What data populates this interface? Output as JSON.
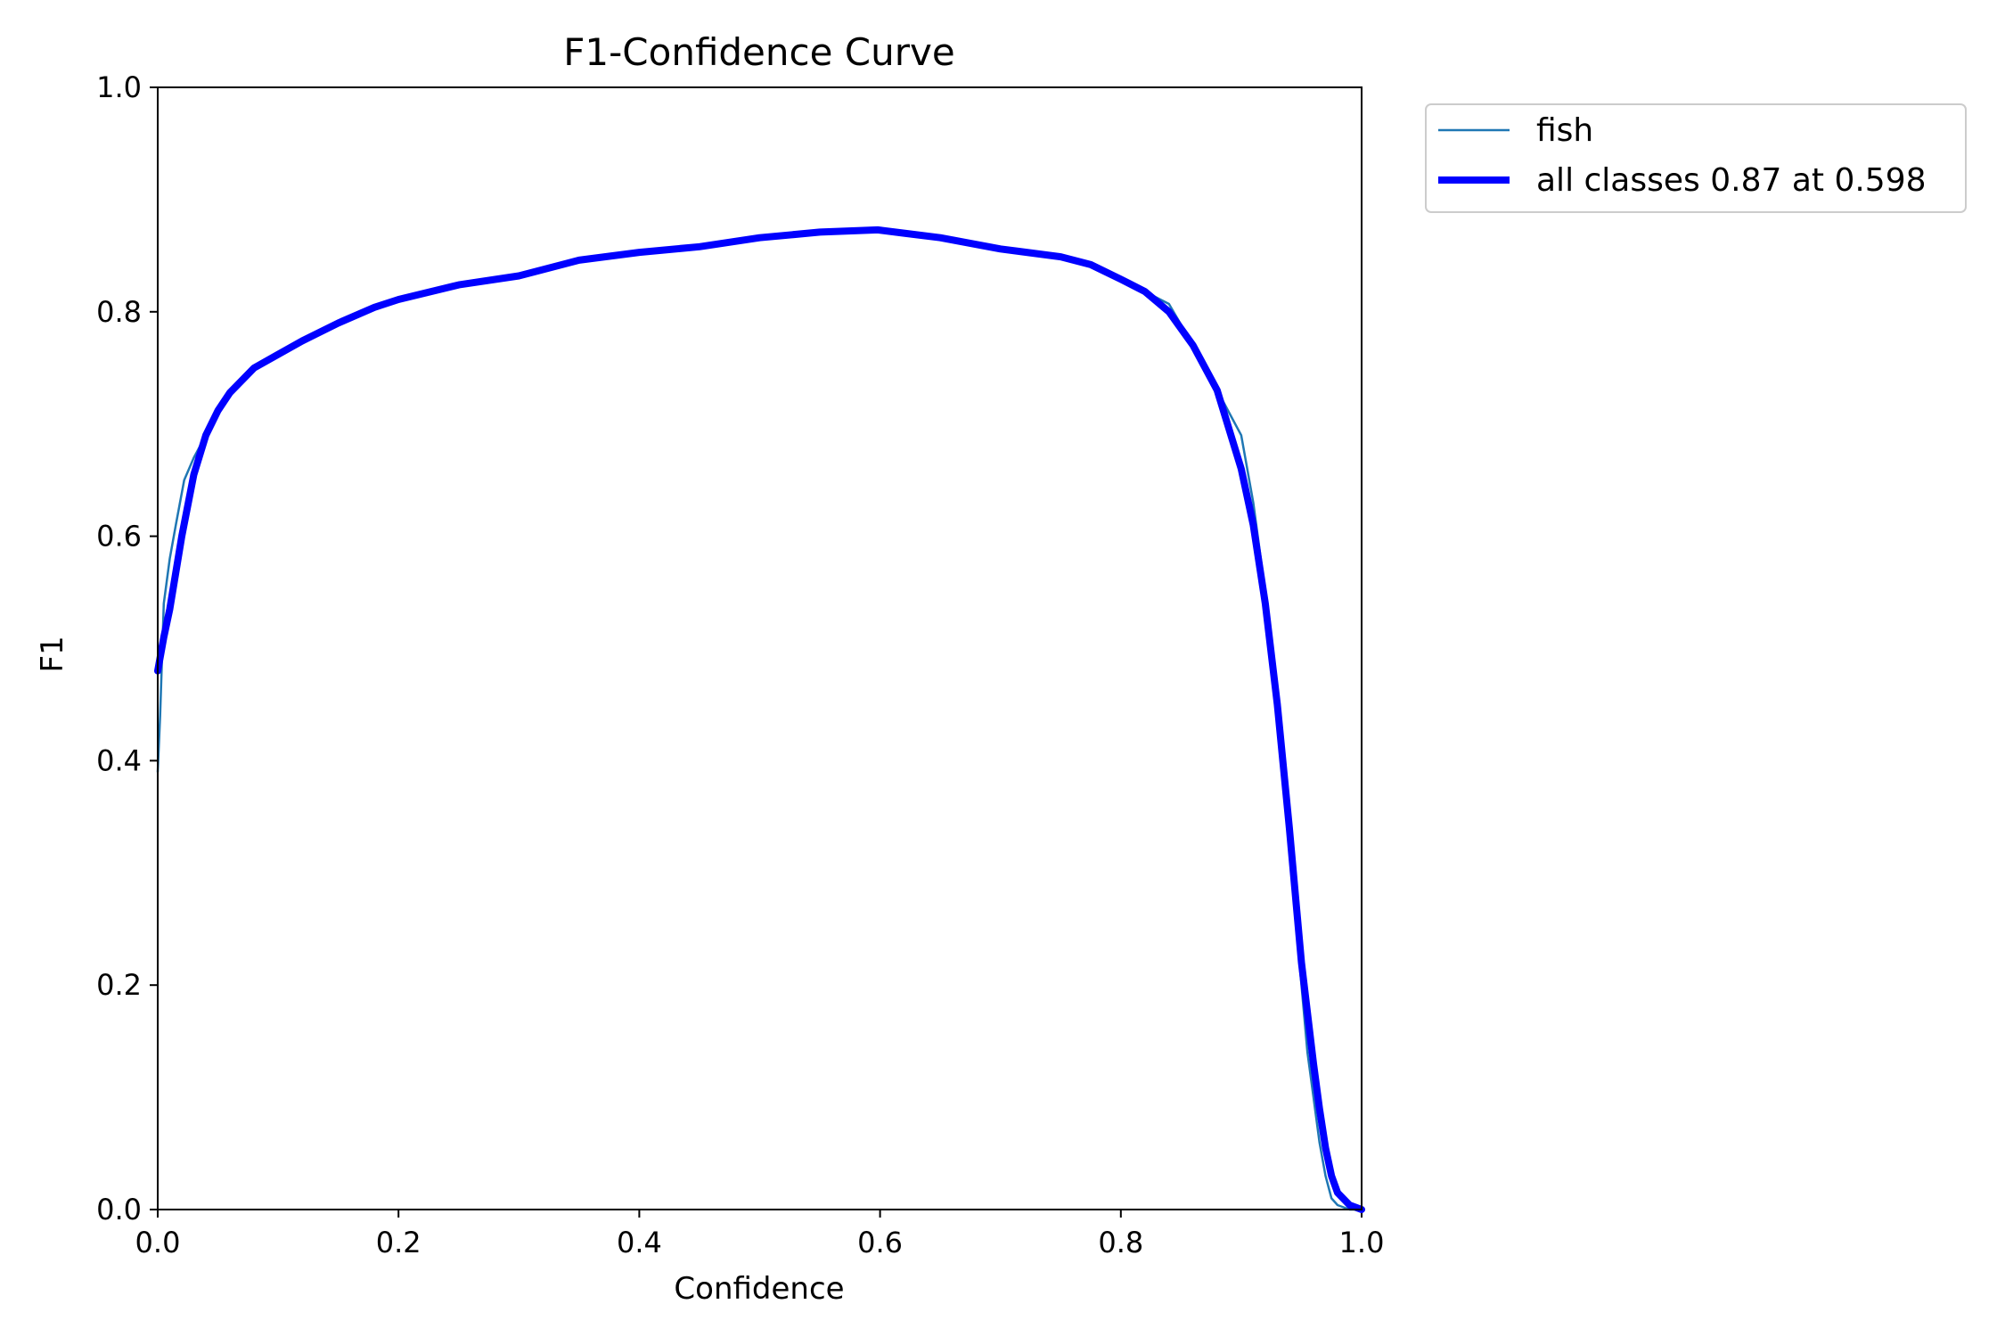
{
  "chart_data": {
    "type": "line",
    "title": "F1-Confidence Curve",
    "xlabel": "Confidence",
    "ylabel": "F1",
    "xlim": [
      0.0,
      1.0
    ],
    "ylim": [
      0.0,
      1.0
    ],
    "x_ticks": [
      "0.0",
      "0.2",
      "0.4",
      "0.6",
      "0.8",
      "1.0"
    ],
    "y_ticks": [
      "0.0",
      "0.2",
      "0.4",
      "0.6",
      "0.8",
      "1.0"
    ],
    "grid": false,
    "legend_position": "outside-top-right",
    "series": [
      {
        "name": "fish",
        "color": "#1f77b4",
        "points": [
          [
            0.0,
            0.39
          ],
          [
            0.002,
            0.44
          ],
          [
            0.005,
            0.54
          ],
          [
            0.01,
            0.58
          ],
          [
            0.015,
            0.61
          ],
          [
            0.022,
            0.65
          ],
          [
            0.03,
            0.67
          ],
          [
            0.04,
            0.69
          ],
          [
            0.05,
            0.71
          ],
          [
            0.06,
            0.73
          ],
          [
            0.08,
            0.75
          ],
          [
            0.1,
            0.763
          ],
          [
            0.12,
            0.775
          ],
          [
            0.15,
            0.79
          ],
          [
            0.18,
            0.805
          ],
          [
            0.2,
            0.811
          ],
          [
            0.25,
            0.825
          ],
          [
            0.3,
            0.833
          ],
          [
            0.35,
            0.847
          ],
          [
            0.4,
            0.853
          ],
          [
            0.45,
            0.859
          ],
          [
            0.5,
            0.866
          ],
          [
            0.55,
            0.871
          ],
          [
            0.6,
            0.873
          ],
          [
            0.65,
            0.866
          ],
          [
            0.7,
            0.856
          ],
          [
            0.75,
            0.849
          ],
          [
            0.775,
            0.843
          ],
          [
            0.8,
            0.829
          ],
          [
            0.82,
            0.818
          ],
          [
            0.84,
            0.807
          ],
          [
            0.86,
            0.77
          ],
          [
            0.88,
            0.73
          ],
          [
            0.89,
            0.71
          ],
          [
            0.9,
            0.69
          ],
          [
            0.91,
            0.63
          ],
          [
            0.92,
            0.55
          ],
          [
            0.93,
            0.44
          ],
          [
            0.94,
            0.32
          ],
          [
            0.95,
            0.2
          ],
          [
            0.955,
            0.14
          ],
          [
            0.96,
            0.1
          ],
          [
            0.965,
            0.06
          ],
          [
            0.97,
            0.03
          ],
          [
            0.975,
            0.01
          ],
          [
            0.98,
            0.004
          ],
          [
            0.99,
            0.0
          ],
          [
            1.0,
            0.0
          ]
        ]
      },
      {
        "name": "all classes 0.87 at 0.598",
        "color": "#0000ff",
        "points": [
          [
            0.0,
            0.48
          ],
          [
            0.005,
            0.51
          ],
          [
            0.01,
            0.535
          ],
          [
            0.02,
            0.6
          ],
          [
            0.03,
            0.655
          ],
          [
            0.04,
            0.69
          ],
          [
            0.05,
            0.712
          ],
          [
            0.06,
            0.728
          ],
          [
            0.08,
            0.75
          ],
          [
            0.1,
            0.762
          ],
          [
            0.12,
            0.774
          ],
          [
            0.15,
            0.79
          ],
          [
            0.18,
            0.804
          ],
          [
            0.2,
            0.811
          ],
          [
            0.25,
            0.824
          ],
          [
            0.3,
            0.832
          ],
          [
            0.35,
            0.846
          ],
          [
            0.4,
            0.853
          ],
          [
            0.45,
            0.858
          ],
          [
            0.5,
            0.866
          ],
          [
            0.55,
            0.871
          ],
          [
            0.598,
            0.873
          ],
          [
            0.65,
            0.866
          ],
          [
            0.7,
            0.856
          ],
          [
            0.75,
            0.849
          ],
          [
            0.775,
            0.842
          ],
          [
            0.8,
            0.829
          ],
          [
            0.82,
            0.818
          ],
          [
            0.84,
            0.8
          ],
          [
            0.86,
            0.77
          ],
          [
            0.88,
            0.73
          ],
          [
            0.9,
            0.66
          ],
          [
            0.91,
            0.61
          ],
          [
            0.92,
            0.54
          ],
          [
            0.93,
            0.45
          ],
          [
            0.94,
            0.34
          ],
          [
            0.95,
            0.22
          ],
          [
            0.96,
            0.13
          ],
          [
            0.965,
            0.09
          ],
          [
            0.97,
            0.055
          ],
          [
            0.975,
            0.03
          ],
          [
            0.98,
            0.015
          ],
          [
            0.99,
            0.004
          ],
          [
            1.0,
            0.0
          ]
        ]
      }
    ]
  }
}
